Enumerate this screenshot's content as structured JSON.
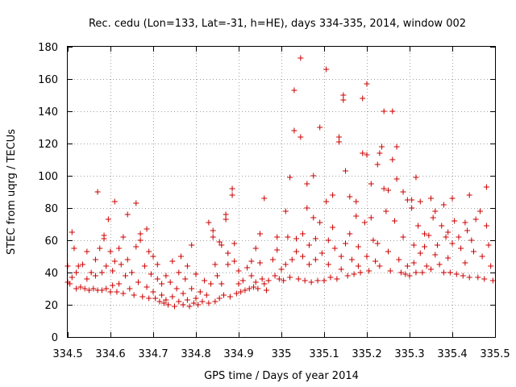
{
  "chart_data": {
    "type": "scatter",
    "title": "Rec. cedu (Lon=133, Lat=-31, h=HE), days 334-335, 2014, window 002",
    "xlabel": "GPS time / Days of year 2014",
    "ylabel": "STEC from uqrg / TECUs",
    "xlim": [
      334.5,
      335.5
    ],
    "ylim": [
      0,
      180
    ],
    "x_ticks": [
      334.5,
      334.6,
      334.7,
      334.8,
      334.9,
      335.0,
      335.1,
      335.2,
      335.3,
      335.4,
      335.5
    ],
    "x_tick_labels": [
      "334.5",
      "334.6",
      "334.7",
      "334.8",
      "334.9",
      "335",
      "335.1",
      "335.2",
      "335.3",
      "335.4",
      "335.5"
    ],
    "y_ticks": [
      0,
      20,
      40,
      60,
      80,
      100,
      120,
      140,
      160,
      180
    ],
    "y_tick_labels": [
      "0",
      "20",
      "40",
      "60",
      "80",
      "100",
      "120",
      "140",
      "160",
      "180"
    ],
    "grid": true,
    "marker": "+",
    "marker_color": "#cc0000",
    "series": [
      {
        "name": "STEC",
        "points": [
          [
            334.5,
            44
          ],
          [
            334.5,
            34
          ],
          [
            334.505,
            33
          ],
          [
            334.51,
            65
          ],
          [
            334.51,
            37
          ],
          [
            334.515,
            55
          ],
          [
            334.52,
            40
          ],
          [
            334.52,
            30
          ],
          [
            334.525,
            44
          ],
          [
            334.53,
            31
          ],
          [
            334.535,
            45
          ],
          [
            334.54,
            30
          ],
          [
            334.545,
            53
          ],
          [
            334.545,
            36
          ],
          [
            334.55,
            29
          ],
          [
            334.555,
            40
          ],
          [
            334.56,
            30
          ],
          [
            334.565,
            48
          ],
          [
            334.565,
            38
          ],
          [
            334.57,
            90
          ],
          [
            334.57,
            29
          ],
          [
            334.575,
            55
          ],
          [
            334.58,
            40
          ],
          [
            334.58,
            29
          ],
          [
            334.585,
            63
          ],
          [
            334.585,
            61
          ],
          [
            334.59,
            44
          ],
          [
            334.59,
            30
          ],
          [
            334.595,
            73
          ],
          [
            334.6,
            53
          ],
          [
            334.6,
            28
          ],
          [
            334.605,
            41
          ],
          [
            334.605,
            32
          ],
          [
            334.61,
            84
          ],
          [
            334.61,
            47
          ],
          [
            334.615,
            28
          ],
          [
            334.62,
            55
          ],
          [
            334.62,
            33
          ],
          [
            334.625,
            45
          ],
          [
            334.63,
            62
          ],
          [
            334.63,
            27
          ],
          [
            334.635,
            38
          ],
          [
            334.64,
            76
          ],
          [
            334.64,
            48
          ],
          [
            334.645,
            30
          ],
          [
            334.65,
            40
          ],
          [
            334.655,
            26
          ],
          [
            334.66,
            83
          ],
          [
            334.66,
            56
          ],
          [
            334.665,
            34
          ],
          [
            334.67,
            60
          ],
          [
            334.67,
            64
          ],
          [
            334.675,
            25
          ],
          [
            334.68,
            44
          ],
          [
            334.685,
            67
          ],
          [
            334.685,
            31
          ],
          [
            334.69,
            53
          ],
          [
            334.69,
            24
          ],
          [
            334.695,
            39
          ],
          [
            334.7,
            50
          ],
          [
            334.7,
            28
          ],
          [
            334.705,
            24
          ],
          [
            334.71,
            45
          ],
          [
            334.71,
            36
          ],
          [
            334.715,
            22
          ],
          [
            334.72,
            33
          ],
          [
            334.72,
            26
          ],
          [
            334.725,
            21
          ],
          [
            334.73,
            38
          ],
          [
            334.73,
            23
          ],
          [
            334.735,
            20
          ],
          [
            334.74,
            34
          ],
          [
            334.745,
            25
          ],
          [
            334.745,
            47
          ],
          [
            334.75,
            19
          ],
          [
            334.755,
            30
          ],
          [
            334.76,
            22
          ],
          [
            334.76,
            40
          ],
          [
            334.765,
            50
          ],
          [
            334.77,
            27
          ],
          [
            334.77,
            20
          ],
          [
            334.775,
            36
          ],
          [
            334.78,
            23
          ],
          [
            334.78,
            44
          ],
          [
            334.785,
            19
          ],
          [
            334.79,
            57
          ],
          [
            334.79,
            30
          ],
          [
            334.795,
            21
          ],
          [
            334.8,
            24
          ],
          [
            334.8,
            39
          ],
          [
            334.805,
            20
          ],
          [
            334.81,
            28
          ],
          [
            334.815,
            22
          ],
          [
            334.82,
            35
          ],
          [
            334.825,
            26
          ],
          [
            334.83,
            71
          ],
          [
            334.83,
            21
          ],
          [
            334.835,
            33
          ],
          [
            334.84,
            66
          ],
          [
            334.84,
            62
          ],
          [
            334.845,
            45
          ],
          [
            334.845,
            22
          ],
          [
            334.85,
            38
          ],
          [
            334.855,
            59
          ],
          [
            334.855,
            24
          ],
          [
            334.86,
            57
          ],
          [
            334.86,
            33
          ],
          [
            334.865,
            26
          ],
          [
            334.87,
            76
          ],
          [
            334.87,
            73
          ],
          [
            334.875,
            52
          ],
          [
            334.875,
            45
          ],
          [
            334.88,
            25
          ],
          [
            334.885,
            92
          ],
          [
            334.885,
            88
          ],
          [
            334.89,
            58
          ],
          [
            334.89,
            47
          ],
          [
            334.895,
            27
          ],
          [
            334.9,
            33
          ],
          [
            334.9,
            41
          ],
          [
            334.905,
            28
          ],
          [
            334.91,
            35
          ],
          [
            334.915,
            29
          ],
          [
            334.92,
            43
          ],
          [
            334.925,
            30
          ],
          [
            334.93,
            47
          ],
          [
            334.93,
            38
          ],
          [
            334.935,
            31
          ],
          [
            334.94,
            55
          ],
          [
            334.94,
            34
          ],
          [
            334.945,
            30
          ],
          [
            334.95,
            64
          ],
          [
            334.95,
            46
          ],
          [
            334.955,
            36
          ],
          [
            334.96,
            86
          ],
          [
            334.96,
            33
          ],
          [
            334.965,
            29
          ],
          [
            334.97,
            35
          ],
          [
            334.98,
            48
          ],
          [
            334.985,
            38
          ],
          [
            334.99,
            62
          ],
          [
            334.99,
            54
          ],
          [
            334.995,
            36
          ],
          [
            335.0,
            42
          ],
          [
            335.005,
            35
          ],
          [
            335.01,
            78
          ],
          [
            335.01,
            45
          ],
          [
            335.015,
            62
          ],
          [
            335.02,
            99
          ],
          [
            335.02,
            37
          ],
          [
            335.025,
            48
          ],
          [
            335.03,
            153
          ],
          [
            335.03,
            128
          ],
          [
            335.035,
            61
          ],
          [
            335.035,
            53
          ],
          [
            335.04,
            36
          ],
          [
            335.045,
            173
          ],
          [
            335.045,
            124
          ],
          [
            335.05,
            64
          ],
          [
            335.05,
            50
          ],
          [
            335.055,
            35
          ],
          [
            335.06,
            80
          ],
          [
            335.06,
            95
          ],
          [
            335.065,
            57
          ],
          [
            335.065,
            45
          ],
          [
            335.07,
            34
          ],
          [
            335.075,
            74
          ],
          [
            335.075,
            100
          ],
          [
            335.08,
            61
          ],
          [
            335.08,
            48
          ],
          [
            335.085,
            35
          ],
          [
            335.09,
            130
          ],
          [
            335.09,
            71
          ],
          [
            335.095,
            52
          ],
          [
            335.1,
            35
          ],
          [
            335.105,
            166
          ],
          [
            335.105,
            84
          ],
          [
            335.11,
            60
          ],
          [
            335.11,
            45
          ],
          [
            335.115,
            37
          ],
          [
            335.12,
            88
          ],
          [
            335.12,
            68
          ],
          [
            335.125,
            55
          ],
          [
            335.13,
            36
          ],
          [
            335.135,
            124
          ],
          [
            335.135,
            121
          ],
          [
            335.14,
            50
          ],
          [
            335.14,
            42
          ],
          [
            335.145,
            150
          ],
          [
            335.145,
            147
          ],
          [
            335.15,
            103
          ],
          [
            335.15,
            58
          ],
          [
            335.155,
            38
          ],
          [
            335.16,
            87
          ],
          [
            335.16,
            64
          ],
          [
            335.165,
            48
          ],
          [
            335.17,
            39
          ],
          [
            335.175,
            84
          ],
          [
            335.175,
            75
          ],
          [
            335.18,
            56
          ],
          [
            335.18,
            44
          ],
          [
            335.185,
            40
          ],
          [
            335.19,
            148
          ],
          [
            335.19,
            114
          ],
          [
            335.195,
            71
          ],
          [
            335.2,
            157
          ],
          [
            335.2,
            113
          ],
          [
            335.2,
            50
          ],
          [
            335.205,
            41
          ],
          [
            335.21,
            95
          ],
          [
            335.21,
            74
          ],
          [
            335.215,
            60
          ],
          [
            335.22,
            47
          ],
          [
            335.225,
            107
          ],
          [
            335.225,
            58
          ],
          [
            335.23,
            114
          ],
          [
            335.23,
            44
          ],
          [
            335.235,
            118
          ],
          [
            335.24,
            140
          ],
          [
            335.24,
            92
          ],
          [
            335.245,
            78
          ],
          [
            335.25,
            91
          ],
          [
            335.25,
            53
          ],
          [
            335.255,
            41
          ],
          [
            335.26,
            140
          ],
          [
            335.26,
            110
          ],
          [
            335.265,
            72
          ],
          [
            335.27,
            118
          ],
          [
            335.27,
            98
          ],
          [
            335.275,
            48
          ],
          [
            335.28,
            40
          ],
          [
            335.285,
            90
          ],
          [
            335.285,
            62
          ],
          [
            335.29,
            39
          ],
          [
            335.295,
            85
          ],
          [
            335.295,
            44
          ],
          [
            335.3,
            38
          ],
          [
            335.305,
            85
          ],
          [
            335.305,
            80
          ],
          [
            335.31,
            57
          ],
          [
            335.31,
            46
          ],
          [
            335.315,
            99
          ],
          [
            335.315,
            40
          ],
          [
            335.32,
            69
          ],
          [
            335.325,
            84
          ],
          [
            335.325,
            52
          ],
          [
            335.33,
            40
          ],
          [
            335.335,
            64
          ],
          [
            335.335,
            56
          ],
          [
            335.34,
            44
          ],
          [
            335.345,
            63
          ],
          [
            335.35,
            86
          ],
          [
            335.35,
            42
          ],
          [
            335.355,
            74
          ],
          [
            335.36,
            78
          ],
          [
            335.36,
            51
          ],
          [
            335.365,
            57
          ],
          [
            335.37,
            45
          ],
          [
            335.375,
            69
          ],
          [
            335.38,
            82
          ],
          [
            335.38,
            40
          ],
          [
            335.385,
            62
          ],
          [
            335.39,
            65
          ],
          [
            335.39,
            49
          ],
          [
            335.395,
            40
          ],
          [
            335.4,
            86
          ],
          [
            335.4,
            58
          ],
          [
            335.405,
            72
          ],
          [
            335.41,
            39
          ],
          [
            335.415,
            62
          ],
          [
            335.42,
            55
          ],
          [
            335.425,
            38
          ],
          [
            335.43,
            71
          ],
          [
            335.43,
            46
          ],
          [
            335.435,
            66
          ],
          [
            335.44,
            88
          ],
          [
            335.44,
            37
          ],
          [
            335.445,
            60
          ],
          [
            335.45,
            53
          ],
          [
            335.455,
            73
          ],
          [
            335.46,
            37
          ],
          [
            335.465,
            78
          ],
          [
            335.47,
            50
          ],
          [
            335.475,
            36
          ],
          [
            335.48,
            93
          ],
          [
            335.48,
            69
          ],
          [
            335.485,
            57
          ],
          [
            335.49,
            44
          ],
          [
            335.495,
            35
          ]
        ]
      }
    ]
  }
}
